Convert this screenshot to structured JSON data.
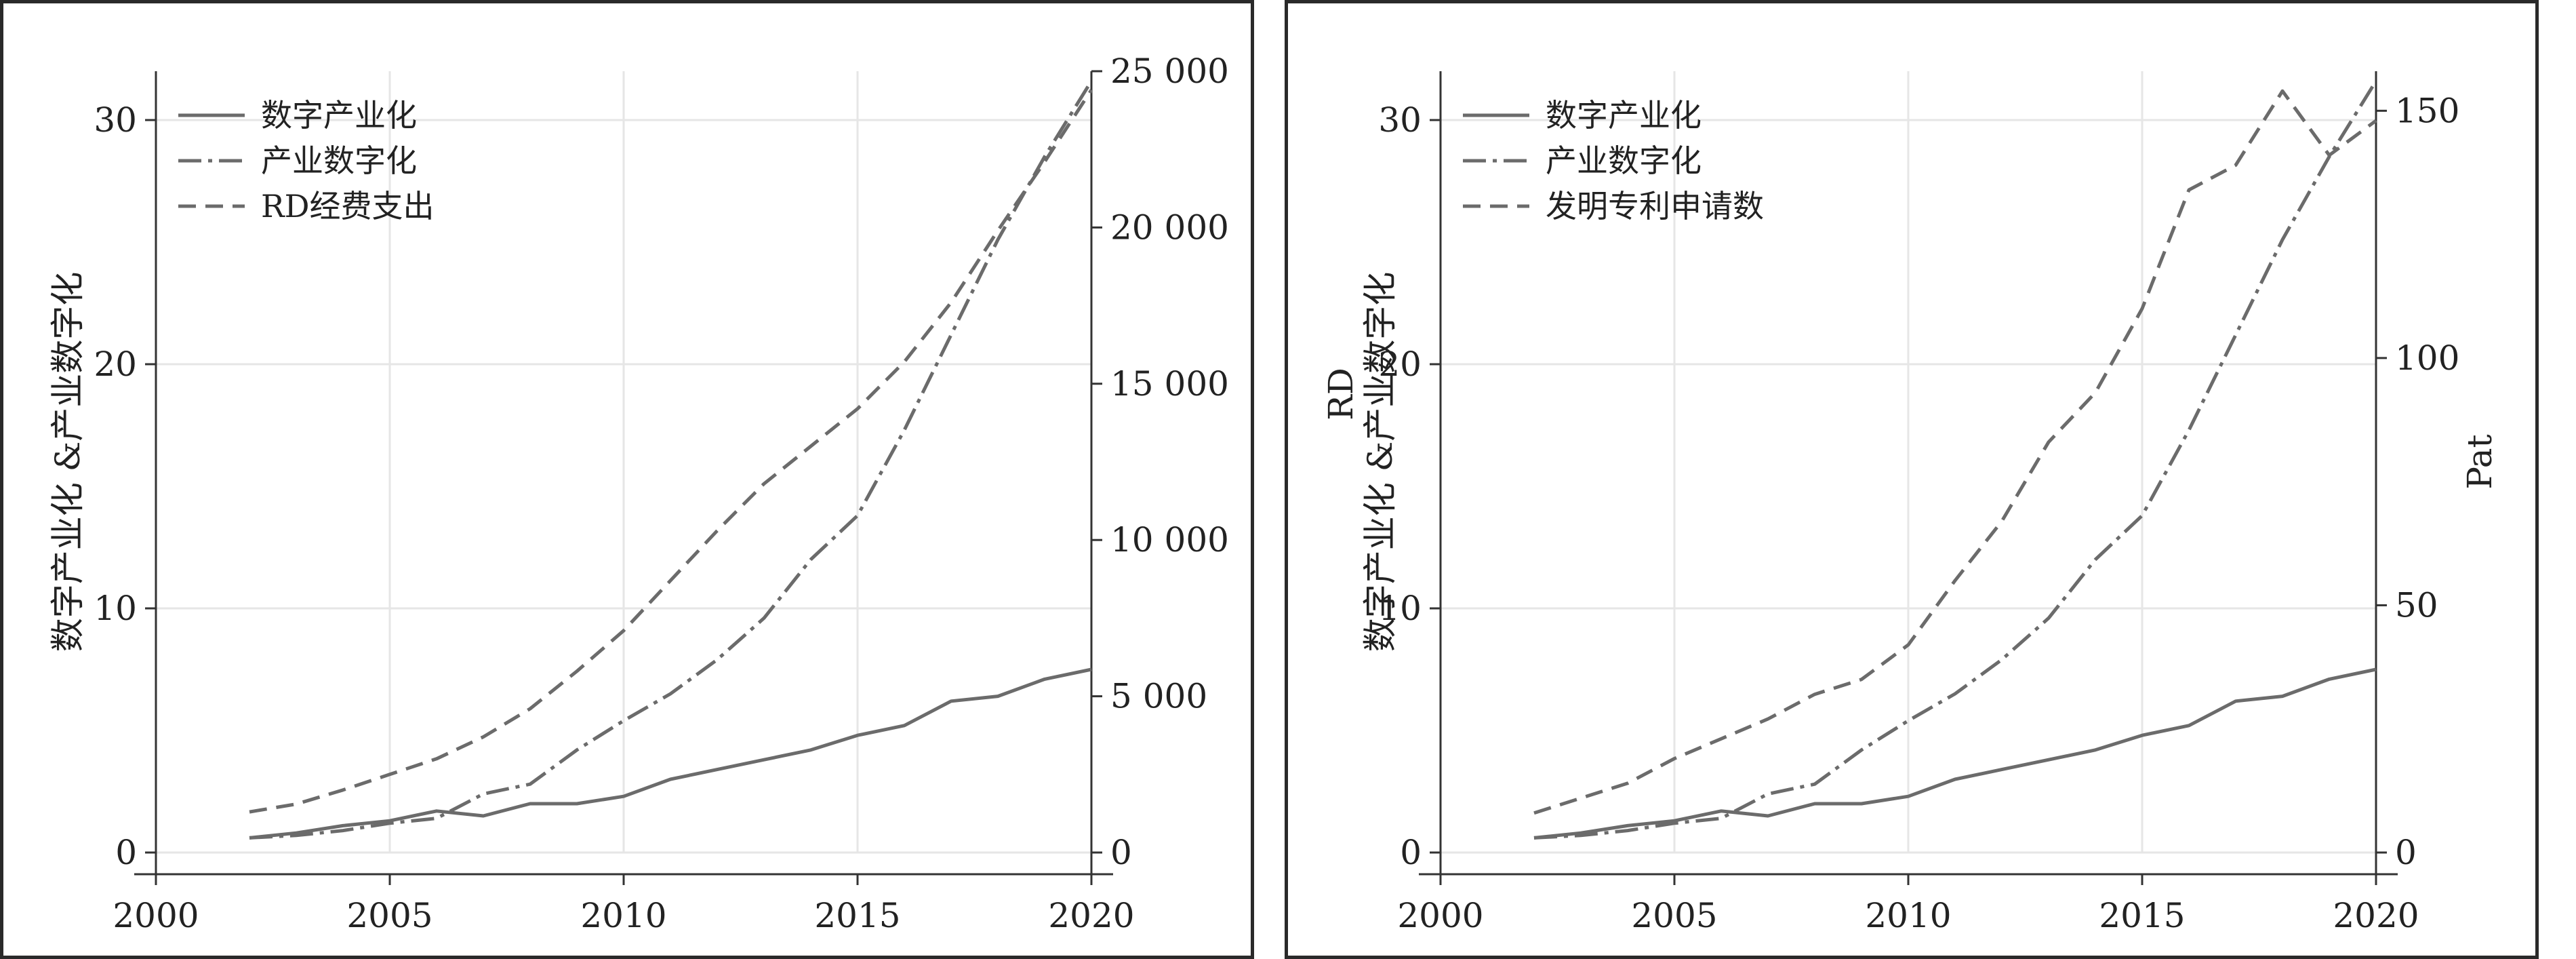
{
  "colors": {
    "line": "#6b6b6b",
    "grid": "#e6e6e6",
    "axis": "#333333",
    "frame": "#2a2a2a"
  },
  "chart_data": [
    {
      "type": "line",
      "x": [
        2002,
        2003,
        2004,
        2005,
        2006,
        2007,
        2008,
        2009,
        2010,
        2011,
        2012,
        2013,
        2014,
        2015,
        2016,
        2017,
        2018,
        2019,
        2020
      ],
      "xlim": [
        2000,
        2020
      ],
      "xticks": [
        "2000",
        "2005",
        "2010",
        "2015",
        "2020"
      ],
      "ylim": [
        0,
        32
      ],
      "yticks": [
        "0",
        "10",
        "20",
        "30"
      ],
      "y2lim": [
        0,
        25000
      ],
      "y2ticks": [
        "0",
        "5 000",
        "10 000",
        "15 000",
        "20 000",
        "25 000"
      ],
      "ylabel": "数字产业化 &产业数字化",
      "y2label": "",
      "grid": true,
      "legend_position": "top-left",
      "series": [
        {
          "name": "数字产业化",
          "axis": "left",
          "dash": "solid",
          "values": [
            0.6,
            0.8,
            1.1,
            1.3,
            1.7,
            1.5,
            2.0,
            2.0,
            2.3,
            3.0,
            3.4,
            3.8,
            4.2,
            4.8,
            5.2,
            6.2,
            6.4,
            7.1,
            7.5
          ]
        },
        {
          "name": "产业数字化",
          "axis": "left",
          "dash": "dashdot",
          "values": [
            0.6,
            0.7,
            0.9,
            1.2,
            1.4,
            2.4,
            2.8,
            4.2,
            5.4,
            6.5,
            7.9,
            9.6,
            12.0,
            13.8,
            17.3,
            21.2,
            25.1,
            28.5,
            31.6
          ]
        },
        {
          "name": "RD经费支出",
          "axis": "right",
          "dash": "dashed",
          "values": [
            1300,
            1550,
            2000,
            2500,
            3000,
            3700,
            4600,
            5800,
            7100,
            8700,
            10300,
            11800,
            13000,
            14200,
            15700,
            17600,
            19900,
            22100,
            24400
          ]
        }
      ]
    },
    {
      "type": "line",
      "x": [
        2002,
        2003,
        2004,
        2005,
        2006,
        2007,
        2008,
        2009,
        2010,
        2011,
        2012,
        2013,
        2014,
        2015,
        2016,
        2017,
        2018,
        2019,
        2020
      ],
      "xlim": [
        2000,
        2020
      ],
      "xticks": [
        "2000",
        "2005",
        "2010",
        "2015",
        "2020"
      ],
      "ylim": [
        0,
        32
      ],
      "yticks": [
        "0",
        "10",
        "20",
        "30"
      ],
      "y2lim": [
        0,
        158
      ],
      "y2ticks": [
        "0",
        "50",
        "100",
        "150"
      ],
      "ylabel": "RD",
      "ylabel2": "数字产业化 &产业数字化",
      "y2label": "Pat",
      "grid": true,
      "legend_position": "top-left",
      "series": [
        {
          "name": "数字产业化",
          "axis": "left",
          "dash": "solid",
          "values": [
            0.6,
            0.8,
            1.1,
            1.3,
            1.7,
            1.5,
            2.0,
            2.0,
            2.3,
            3.0,
            3.4,
            3.8,
            4.2,
            4.8,
            5.2,
            6.2,
            6.4,
            7.1,
            7.5
          ]
        },
        {
          "name": "产业数字化",
          "axis": "left",
          "dash": "dashdot",
          "values": [
            0.6,
            0.7,
            0.9,
            1.2,
            1.4,
            2.4,
            2.8,
            4.2,
            5.4,
            6.5,
            7.9,
            9.6,
            12.0,
            13.8,
            17.3,
            21.2,
            25.1,
            28.5,
            31.6
          ]
        },
        {
          "name": "发明专利申请数",
          "axis": "right",
          "dash": "dashed",
          "values": [
            8,
            11,
            14,
            19,
            23,
            27,
            32,
            35,
            42,
            55,
            67,
            83,
            93,
            110,
            134,
            139,
            154,
            141,
            148
          ]
        }
      ]
    }
  ]
}
